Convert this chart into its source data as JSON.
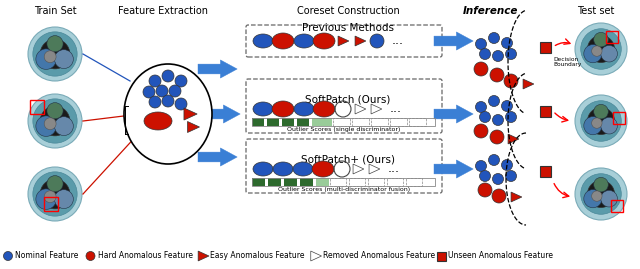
{
  "blue_color": "#2255bb",
  "red_color": "#cc1100",
  "dark_green": "#2d6a2d",
  "light_green": "#99cc99",
  "arrow_color": "#3a7fd5",
  "bg": "white",
  "section_headers": [
    [
      55,
      "Train Set"
    ],
    [
      163,
      "Feature Extraction"
    ],
    [
      350,
      "Coreset Construction"
    ],
    [
      490,
      "Inference"
    ],
    [
      596,
      "Test set"
    ]
  ],
  "row_titles": [
    [
      350,
      "Previous Methods"
    ],
    [
      350,
      "SoftPatch (Ours)"
    ],
    [
      350,
      "SoftPatch+ (Ours)"
    ]
  ],
  "legend": [
    {
      "shape": "circle",
      "color": "#2255bb",
      "label": "Nominal Feature"
    },
    {
      "shape": "circle",
      "color": "#cc1100",
      "label": "Hard Anomalous Feature"
    },
    {
      "shape": "triangle",
      "color": "#cc1100",
      "label": "Easy Anomalous Feature"
    },
    {
      "shape": "tri_outline",
      "color": "#555555",
      "label": "Removed Anomalous Feature"
    },
    {
      "shape": "square",
      "color": "#cc1100",
      "label": "Unseen Anomalous Feature"
    }
  ]
}
